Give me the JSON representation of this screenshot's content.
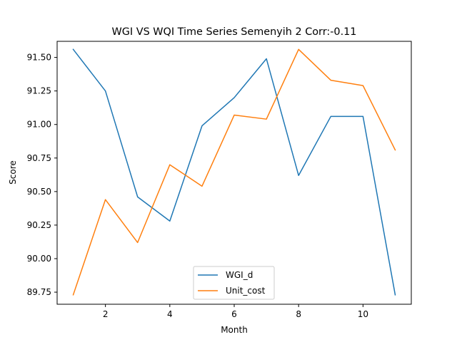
{
  "chart_data": {
    "type": "line",
    "title": "WGI VS WQI Time Series Semenyih 2 Corr:-0.11",
    "xlabel": "Month",
    "ylabel": "Score",
    "xlim": [
      0.5,
      11.5
    ],
    "ylim": [
      89.66,
      91.62
    ],
    "xticks": [
      2,
      4,
      6,
      8,
      10
    ],
    "yticks": [
      89.75,
      90.0,
      90.25,
      90.5,
      90.75,
      91.0,
      91.25,
      91.5
    ],
    "ytick_labels": [
      "89.75",
      "90.00",
      "90.25",
      "90.50",
      "90.75",
      "91.00",
      "91.25",
      "91.50"
    ],
    "grid": false,
    "legend_position": "lower center",
    "x": [
      1,
      2,
      3,
      4,
      5,
      6,
      7,
      8,
      9,
      10,
      11
    ],
    "series": [
      {
        "name": "WGI_d",
        "color": "#1f77b4",
        "values": [
          91.56,
          91.25,
          90.46,
          90.28,
          90.99,
          91.2,
          91.49,
          90.62,
          91.06,
          91.06,
          89.73
        ]
      },
      {
        "name": "Unit_cost",
        "color": "#ff7f0e",
        "values": [
          89.73,
          90.44,
          90.12,
          90.7,
          90.54,
          91.07,
          91.04,
          91.56,
          91.33,
          91.29,
          90.81
        ]
      }
    ]
  }
}
